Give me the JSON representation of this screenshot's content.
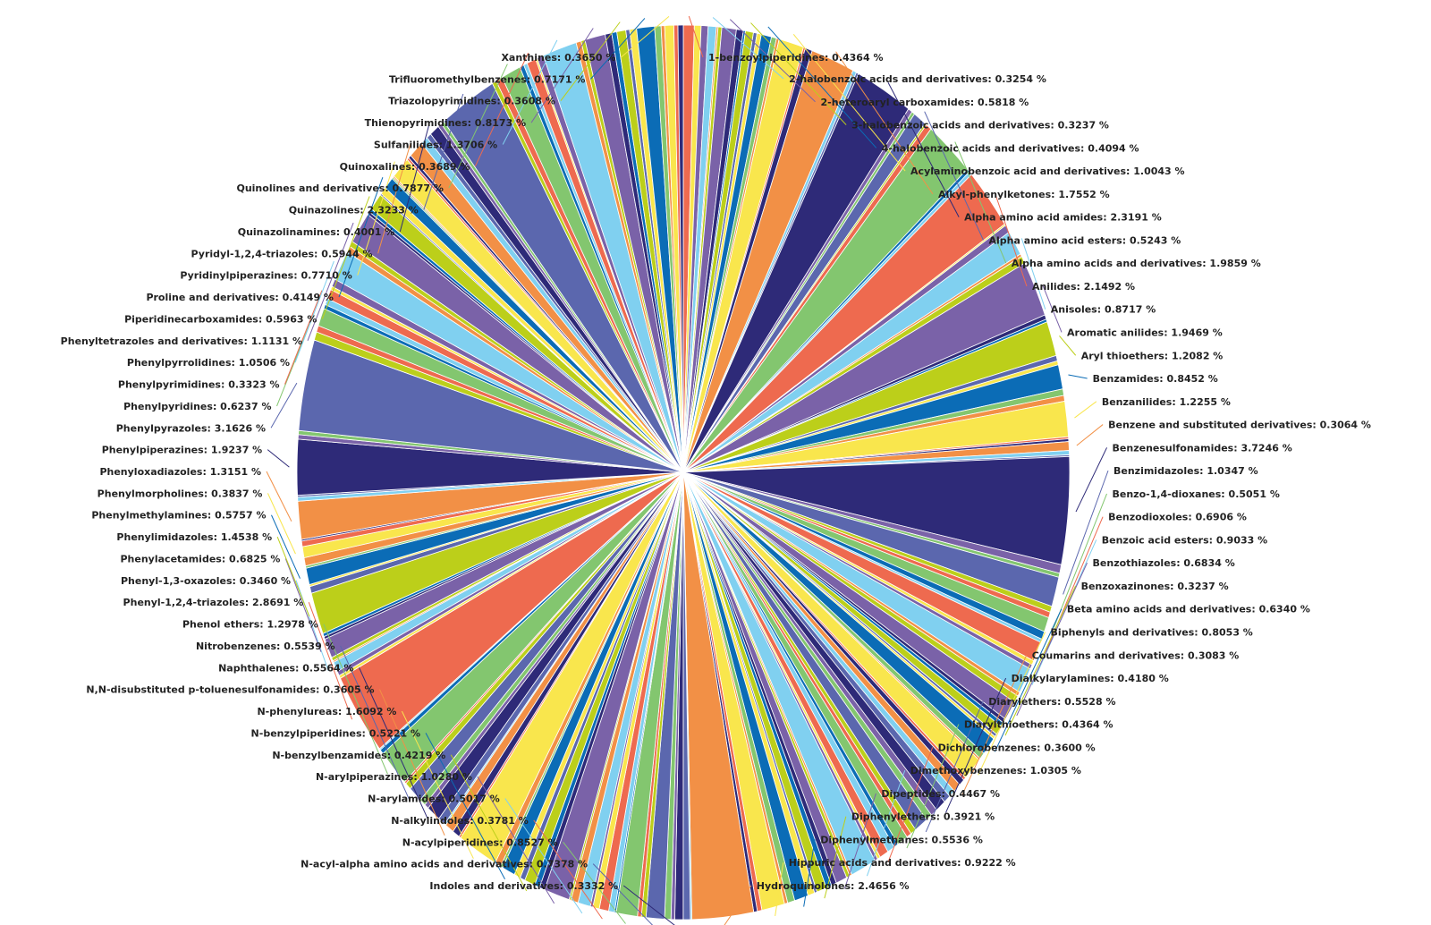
{
  "chart_data": {
    "type": "pie",
    "title": "",
    "palette": [
      "#2e2a78",
      "#5b67ae",
      "#83c66f",
      "#ee6a4f",
      "#80d0f0",
      "#7a62a8",
      "#bccf1a",
      "#0b6cb6",
      "#f9e64d",
      "#f29046"
    ],
    "labeled_slices": [
      {
        "label": "1-benzoylpiperidines: 0.4364 %",
        "value": 0.4364
      },
      {
        "label": "2-halobenzoic acids and derivatives: 0.3254 %",
        "value": 0.3254
      },
      {
        "label": "2-heteroaryl carboxamides: 0.5818 %",
        "value": 0.5818
      },
      {
        "label": "3-halobenzoic acids and derivatives: 0.3237 %",
        "value": 0.3237
      },
      {
        "label": "4-halobenzoic acids and derivatives: 0.4094 %",
        "value": 0.4094
      },
      {
        "label": "Acylaminobenzoic acid and derivatives: 1.0043 %",
        "value": 1.0043
      },
      {
        "label": "Alkyl-phenylketones: 1.7552 %",
        "value": 1.7552
      },
      {
        "label": "Alpha amino acid amides: 2.3191 %",
        "value": 2.3191
      },
      {
        "label": "Alpha amino acid esters: 0.5243 %",
        "value": 0.5243
      },
      {
        "label": "Alpha amino acids and derivatives: 1.9859 %",
        "value": 1.9859
      },
      {
        "label": "Anilides: 2.1492 %",
        "value": 2.1492
      },
      {
        "label": "Anisoles: 0.8717 %",
        "value": 0.8717
      },
      {
        "label": "Aromatic anilides: 1.9469 %",
        "value": 1.9469
      },
      {
        "label": "Aryl thioethers: 1.2082 %",
        "value": 1.2082
      },
      {
        "label": "Benzamides: 0.8452 %",
        "value": 0.8452
      },
      {
        "label": "Benzanilides: 1.2255 %",
        "value": 1.2255
      },
      {
        "label": "Benzene and substituted derivatives: 0.3064 %",
        "value": 0.3064
      },
      {
        "label": "Benzenesulfonamides: 3.7246 %",
        "value": 3.7246
      },
      {
        "label": "Benzimidazoles: 1.0347 %",
        "value": 1.0347
      },
      {
        "label": "Benzo-1,4-dioxanes: 0.5051 %",
        "value": 0.5051
      },
      {
        "label": "Benzodioxoles: 0.6906 %",
        "value": 0.6906
      },
      {
        "label": "Benzoic acid esters: 0.9033 %",
        "value": 0.9033
      },
      {
        "label": "Benzothiazoles: 0.6834 %",
        "value": 0.6834
      },
      {
        "label": "Benzoxazinones: 0.3237 %",
        "value": 0.3237
      },
      {
        "label": "Beta amino acids and derivatives: 0.6340 %",
        "value": 0.634
      },
      {
        "label": "Biphenyls and derivatives: 0.8053 %",
        "value": 0.8053
      },
      {
        "label": "Coumarins and derivatives: 0.3083 %",
        "value": 0.3083
      },
      {
        "label": "Dialkylarylamines: 0.4180 %",
        "value": 0.418
      },
      {
        "label": "Diarylethers: 0.5528 %",
        "value": 0.5528
      },
      {
        "label": "Diarylthioethers: 0.4364 %",
        "value": 0.4364
      },
      {
        "label": "Dichlorobenzenes: 0.3600 %",
        "value": 0.36
      },
      {
        "label": "Dimethoxybenzenes: 1.0305 %",
        "value": 1.0305
      },
      {
        "label": "Dipeptides: 0.4467 %",
        "value": 0.4467
      },
      {
        "label": "Diphenylethers: 0.3921 %",
        "value": 0.3921
      },
      {
        "label": "Diphenylmethanes: 0.5536 %",
        "value": 0.5536
      },
      {
        "label": "Hippuric acids and derivatives: 0.9222 %",
        "value": 0.9222
      },
      {
        "label": "Hydroquinolones: 2.4656 %",
        "value": 2.4656
      },
      {
        "label": "Indoles and derivatives: 0.3332 %",
        "value": 0.3332
      },
      {
        "label": "N-acyl-alpha amino acids and derivatives: 0.7378 %",
        "value": 0.7378
      },
      {
        "label": "N-acylpiperidines: 0.8527 %",
        "value": 0.8527
      },
      {
        "label": "N-alkylindoles: 0.3781 %",
        "value": 0.3781
      },
      {
        "label": "N-arylamides: 0.5017 %",
        "value": 0.5017
      },
      {
        "label": "N-arylpiperazines: 1.0280 %",
        "value": 1.028
      },
      {
        "label": "N-benzylbenzamides: 0.4219 %",
        "value": 0.4219
      },
      {
        "label": "N-benzylpiperidines: 0.5221 %",
        "value": 0.5221
      },
      {
        "label": "N-phenylureas: 1.6092 %",
        "value": 1.6092
      },
      {
        "label": "N,N-disubstituted p-toluenesulfonamides: 0.3605 %",
        "value": 0.3605
      },
      {
        "label": "Naphthalenes: 0.5564 %",
        "value": 0.5564
      },
      {
        "label": "Nitrobenzenes: 0.5539 %",
        "value": 0.5539
      },
      {
        "label": "Phenol ethers: 1.2978 %",
        "value": 1.2978
      },
      {
        "label": "Phenyl-1,2,4-triazoles: 2.8691 %",
        "value": 2.8691
      },
      {
        "label": "Phenyl-1,3-oxazoles: 0.3460 %",
        "value": 0.346
      },
      {
        "label": "Phenylacetamides: 0.6825 %",
        "value": 0.6825
      },
      {
        "label": "Phenylimidazoles: 1.4538 %",
        "value": 1.4538
      },
      {
        "label": "Phenylmethylamines: 0.5757 %",
        "value": 0.5757
      },
      {
        "label": "Phenylmorpholines: 0.3837 %",
        "value": 0.3837
      },
      {
        "label": "Phenyloxadiazoles: 1.3151 %",
        "value": 1.3151
      },
      {
        "label": "Phenylpiperazines: 1.9237 %",
        "value": 1.9237
      },
      {
        "label": "Phenylpyrazoles: 3.1626 %",
        "value": 3.1626
      },
      {
        "label": "Phenylpyridines: 0.6237 %",
        "value": 0.6237
      },
      {
        "label": "Phenylpyrimidines: 0.3323 %",
        "value": 0.3323
      },
      {
        "label": "Phenylpyrrolidines: 1.0506 %",
        "value": 1.0506
      },
      {
        "label": "Phenyltetrazoles and derivatives: 1.1131 %",
        "value": 1.1131
      },
      {
        "label": "Piperidinecarboxamides: 0.5963 %",
        "value": 0.5963
      },
      {
        "label": "Proline and derivatives: 0.4149 %",
        "value": 0.4149
      },
      {
        "label": "Pyridinylpiperazines: 0.7710 %",
        "value": 0.771
      },
      {
        "label": "Pyridyl-1,2,4-triazoles: 0.5944 %",
        "value": 0.5944
      },
      {
        "label": "Quinazolinamines: 0.4001 %",
        "value": 0.4001
      },
      {
        "label": "Quinazolines: 2.3233 %",
        "value": 2.3233
      },
      {
        "label": "Quinolines and derivatives: 0.7877 %",
        "value": 0.7877
      },
      {
        "label": "Quinoxalines: 0.3689 %",
        "value": 0.3689
      },
      {
        "label": "Sulfanilides: 1.3706 %",
        "value": 1.3706
      },
      {
        "label": "Thienopyrimidines: 0.8173 %",
        "value": 0.8173
      },
      {
        "label": "Triazolopyrimidines: 0.3608 %",
        "value": 0.3608
      },
      {
        "label": "Trifluoromethylbenzenes: 0.7171 %",
        "value": 0.7171
      },
      {
        "label": "Xanthines: 0.3650 %",
        "value": 0.365
      }
    ],
    "unlabeled_small_slices": {
      "count": 140,
      "value_range": [
        0.05,
        0.3
      ],
      "note_for_render": "thin unlabeled slices interleaved between labeled ones"
    }
  }
}
